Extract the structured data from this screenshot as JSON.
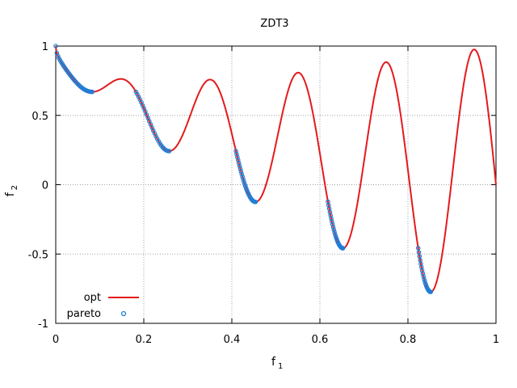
{
  "chart_data": {
    "type": "scatter",
    "title": "ZDT3",
    "xlabel": {
      "main": "f",
      "sub": "1"
    },
    "ylabel": {
      "main": "f",
      "sub": "2"
    },
    "xlim": [
      0,
      1
    ],
    "ylim": [
      -1,
      1
    ],
    "xticks": [
      0,
      0.2,
      0.4,
      0.6,
      0.8,
      1
    ],
    "yticks": [
      -1,
      -0.5,
      0,
      0.5,
      1
    ],
    "xtick_labels": [
      "0",
      "0.2",
      "0.4",
      "0.6",
      "0.8",
      "1"
    ],
    "ytick_labels": [
      "-1",
      "-0.5",
      "0",
      "0.5",
      "1"
    ],
    "grid": true,
    "legend_position": "bottom-left",
    "series": [
      {
        "name": "opt",
        "kind": "line",
        "color": "#e41a1c",
        "function": "1 - sqrt(f1) - f1*sin(10*pi*f1)",
        "x_range": [
          0,
          1
        ]
      },
      {
        "name": "pareto",
        "kind": "points",
        "color": "#1e7fd8",
        "marker": "open-circle",
        "segments": [
          [
            0.0,
            0.083
          ],
          [
            0.1822,
            0.2577
          ],
          [
            0.4093,
            0.4538
          ],
          [
            0.6183,
            0.6525
          ],
          [
            0.8233,
            0.8518
          ]
        ],
        "points_per_segment": [
          34,
          26,
          28,
          24,
          20
        ]
      }
    ]
  }
}
